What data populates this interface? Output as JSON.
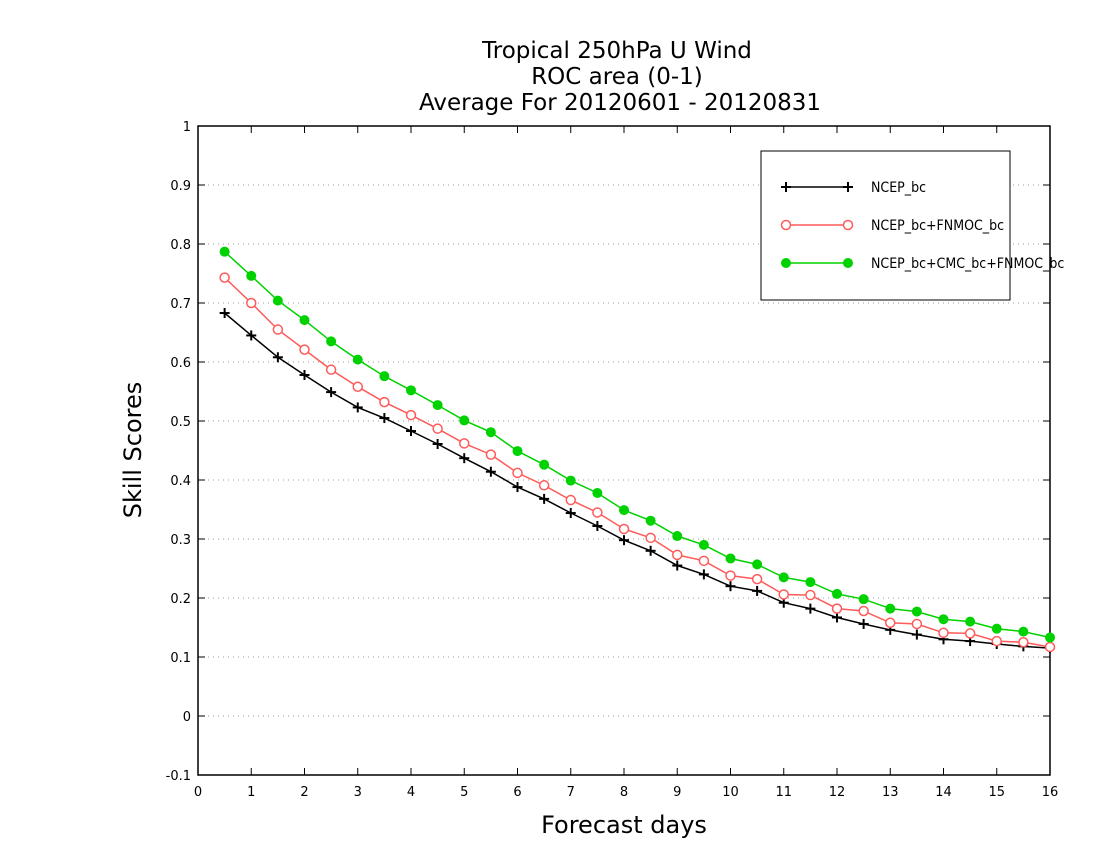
{
  "chart_data": {
    "type": "line",
    "title": [
      "Tropical 250hPa U Wind",
      "ROC area (0-1)",
      "Average For 20120601 - 20120831"
    ],
    "xlabel": "Forecast days",
    "ylabel": "Skill Scores",
    "xlim": [
      0,
      16
    ],
    "ylim": [
      -0.1,
      1
    ],
    "xticks": [
      0,
      1,
      2,
      3,
      4,
      5,
      6,
      7,
      8,
      9,
      10,
      11,
      12,
      13,
      14,
      15,
      16
    ],
    "yticks": [
      -0.1,
      0,
      0.1,
      0.2,
      0.3,
      0.4,
      0.5,
      0.6,
      0.7,
      0.8,
      0.9,
      1
    ],
    "ytick_labels": [
      "-0.1",
      "0",
      "0.1",
      "0.2",
      "0.3",
      "0.4",
      "0.5",
      "0.6",
      "0.7",
      "0.8",
      "0.9",
      "1"
    ],
    "grid": "horizontal-dotted",
    "legend_position": "top-right",
    "x": [
      0.5,
      1,
      1.5,
      2,
      2.5,
      3,
      3.5,
      4,
      4.5,
      5,
      5.5,
      6,
      6.5,
      7,
      7.5,
      8,
      8.5,
      9,
      9.5,
      10,
      10.5,
      11,
      11.5,
      12,
      12.5,
      13,
      13.5,
      14,
      14.5,
      15,
      15.5,
      16
    ],
    "series": [
      {
        "name": "NCEP_bc",
        "color": "#000000",
        "marker": "plus",
        "values": [
          0.683,
          0.645,
          0.608,
          0.578,
          0.549,
          0.523,
          0.505,
          0.483,
          0.461,
          0.437,
          0.414,
          0.388,
          0.368,
          0.344,
          0.322,
          0.298,
          0.28,
          0.255,
          0.24,
          0.22,
          0.212,
          0.192,
          0.182,
          0.167,
          0.156,
          0.146,
          0.138,
          0.13,
          0.127,
          0.122,
          0.118,
          0.115
        ]
      },
      {
        "name": "NCEP_bc+FNMOC_bc",
        "color": "#ff5a5a",
        "marker": "open-circle",
        "values": [
          0.743,
          0.7,
          0.655,
          0.621,
          0.587,
          0.558,
          0.532,
          0.51,
          0.487,
          0.462,
          0.443,
          0.412,
          0.391,
          0.366,
          0.345,
          0.317,
          0.302,
          0.273,
          0.263,
          0.238,
          0.232,
          0.206,
          0.205,
          0.182,
          0.178,
          0.158,
          0.156,
          0.141,
          0.14,
          0.127,
          0.125,
          0.117
        ]
      },
      {
        "name": "NCEP_bc+CMC_bc+FNMOC_bc",
        "color": "#00d200",
        "marker": "filled-circle",
        "values": [
          0.787,
          0.746,
          0.704,
          0.671,
          0.635,
          0.604,
          0.576,
          0.552,
          0.527,
          0.501,
          0.481,
          0.449,
          0.426,
          0.399,
          0.378,
          0.349,
          0.331,
          0.305,
          0.29,
          0.267,
          0.257,
          0.235,
          0.227,
          0.207,
          0.198,
          0.182,
          0.177,
          0.164,
          0.16,
          0.148,
          0.143,
          0.133
        ]
      }
    ]
  }
}
